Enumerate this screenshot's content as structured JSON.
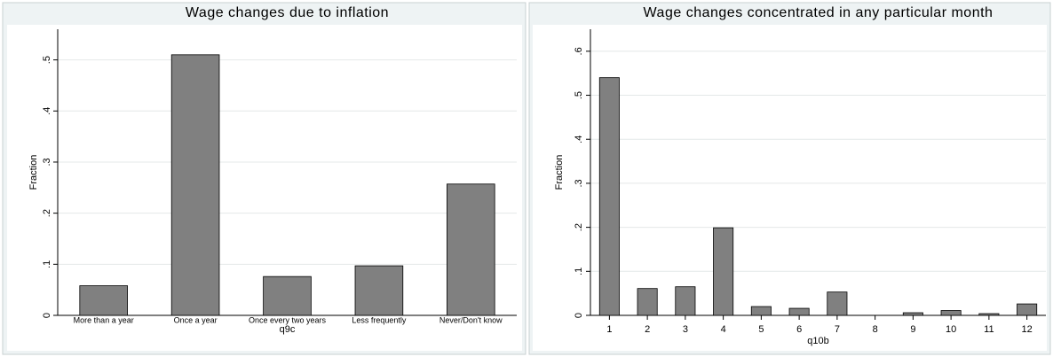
{
  "chart_data": [
    {
      "type": "bar",
      "title": "Wage changes due to inflation",
      "x_label": "q9c",
      "y_label": "Fraction",
      "categories": [
        "More than a year",
        "Once a year",
        "Once every two years",
        "Less frequently",
        "Never/Don't know"
      ],
      "values": [
        0.058,
        0.51,
        0.076,
        0.097,
        0.257
      ],
      "color": "#808080",
      "ylim": [
        0,
        0.56
      ],
      "yticks": [
        0,
        {
          "value": 0.1,
          "label": ".1"
        },
        {
          "value": 0.2,
          "label": ".2"
        },
        {
          "value": 0.3,
          "label": ".3"
        },
        {
          "value": 0.4,
          "label": ".4"
        },
        {
          "value": 0.5,
          "label": ".5"
        }
      ],
      "grid": true
    },
    {
      "type": "bar",
      "title": "Wage changes concentrated in any particular month",
      "x_label": "q10b",
      "y_label": "Fraction",
      "categories": [
        "1",
        "2",
        "3",
        "4",
        "5",
        "6",
        "7",
        "8",
        "9",
        "10",
        "11",
        "12"
      ],
      "values": [
        0.54,
        0.061,
        0.065,
        0.199,
        0.02,
        0.016,
        0.053,
        0,
        0.006,
        0.011,
        0.004,
        0.026
      ],
      "color": "#808080",
      "ylim": [
        0,
        0.65
      ],
      "yticks": [
        0,
        {
          "value": 0.1,
          "label": ".1"
        },
        {
          "value": 0.2,
          "label": ".2"
        },
        {
          "value": 0.3,
          "label": ".3"
        },
        {
          "value": 0.4,
          "label": ".4"
        },
        {
          "value": 0.5,
          "label": ".5"
        },
        {
          "value": 0.6,
          "label": ".6"
        }
      ],
      "grid": true
    }
  ]
}
